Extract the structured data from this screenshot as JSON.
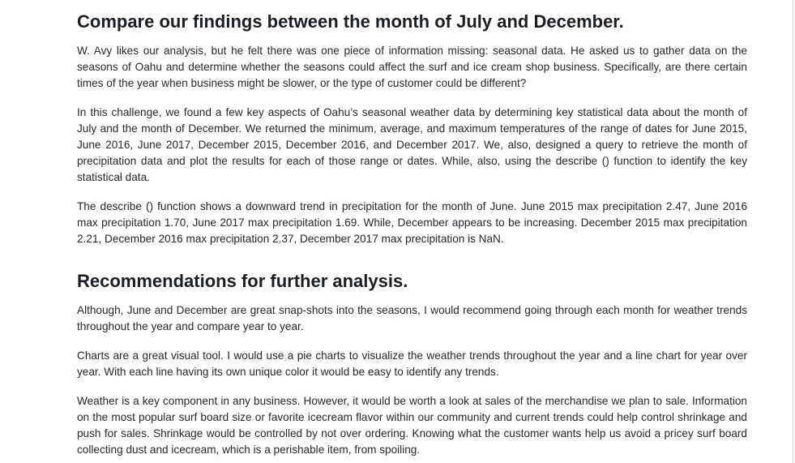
{
  "section1": {
    "heading": "Compare our findings between the month of July and December.",
    "paragraphs": [
      "W. Avy likes our analysis, but he felt there was one piece of information missing: seasonal data. He asked us to gather data on the seasons of Oahu and determine whether the seasons could affect the surf and ice cream shop business. Specifically, are there certain times of the year when business might be slower, or the type of customer could be different?",
      "In this challenge, we found a few key aspects of Oahu’s seasonal weather data by determining key statistical data about the month of July and the month of December. We returned the minimum, average, and maximum temperatures of the range of dates for June 2015, June 2016, June 2017, December 2015, December 2016, and December 2017. We, also, designed a query to retrieve the month of precipitation data and plot the results for each of those range or dates. While, also, using the describe () function to identify the key statistical data.",
      "The describe () function shows a downward trend in precipitation for the month of June. June 2015 max precipitation 2.47, June 2016 max precipitation 1.70, June 2017 max precipitation 1.69. While, December appears to be increasing. December 2015 max precipitation 2.21, December 2016 max precipitation 2.37, December 2017 max precipitation is NaN."
    ]
  },
  "section2": {
    "heading": "Recommendations for further analysis.",
    "paragraphs": [
      "Although, June and December are great snap-shots into the seasons, I would recommend going through each month for weather trends throughout the year and compare year to year.",
      "Charts are a great visual tool. I would use a pie charts to visualize the weather trends throughout the year and a line chart for year over year. With each line having its own unique color it would be easy to identify any trends.",
      "Weather is a key component in any business. However, it would be worth a look at sales of the merchandise we plan to sale. Information on the most popular surf board size or favorite icecream flavor within our community and current trends could help control shrinkage and push for sales. Shrinkage would be controlled by not over ordering. Knowing what the customer wants help us avoid a pricey surf board collecting dust and icecream, which is a perishable item, from spoiling."
    ]
  }
}
